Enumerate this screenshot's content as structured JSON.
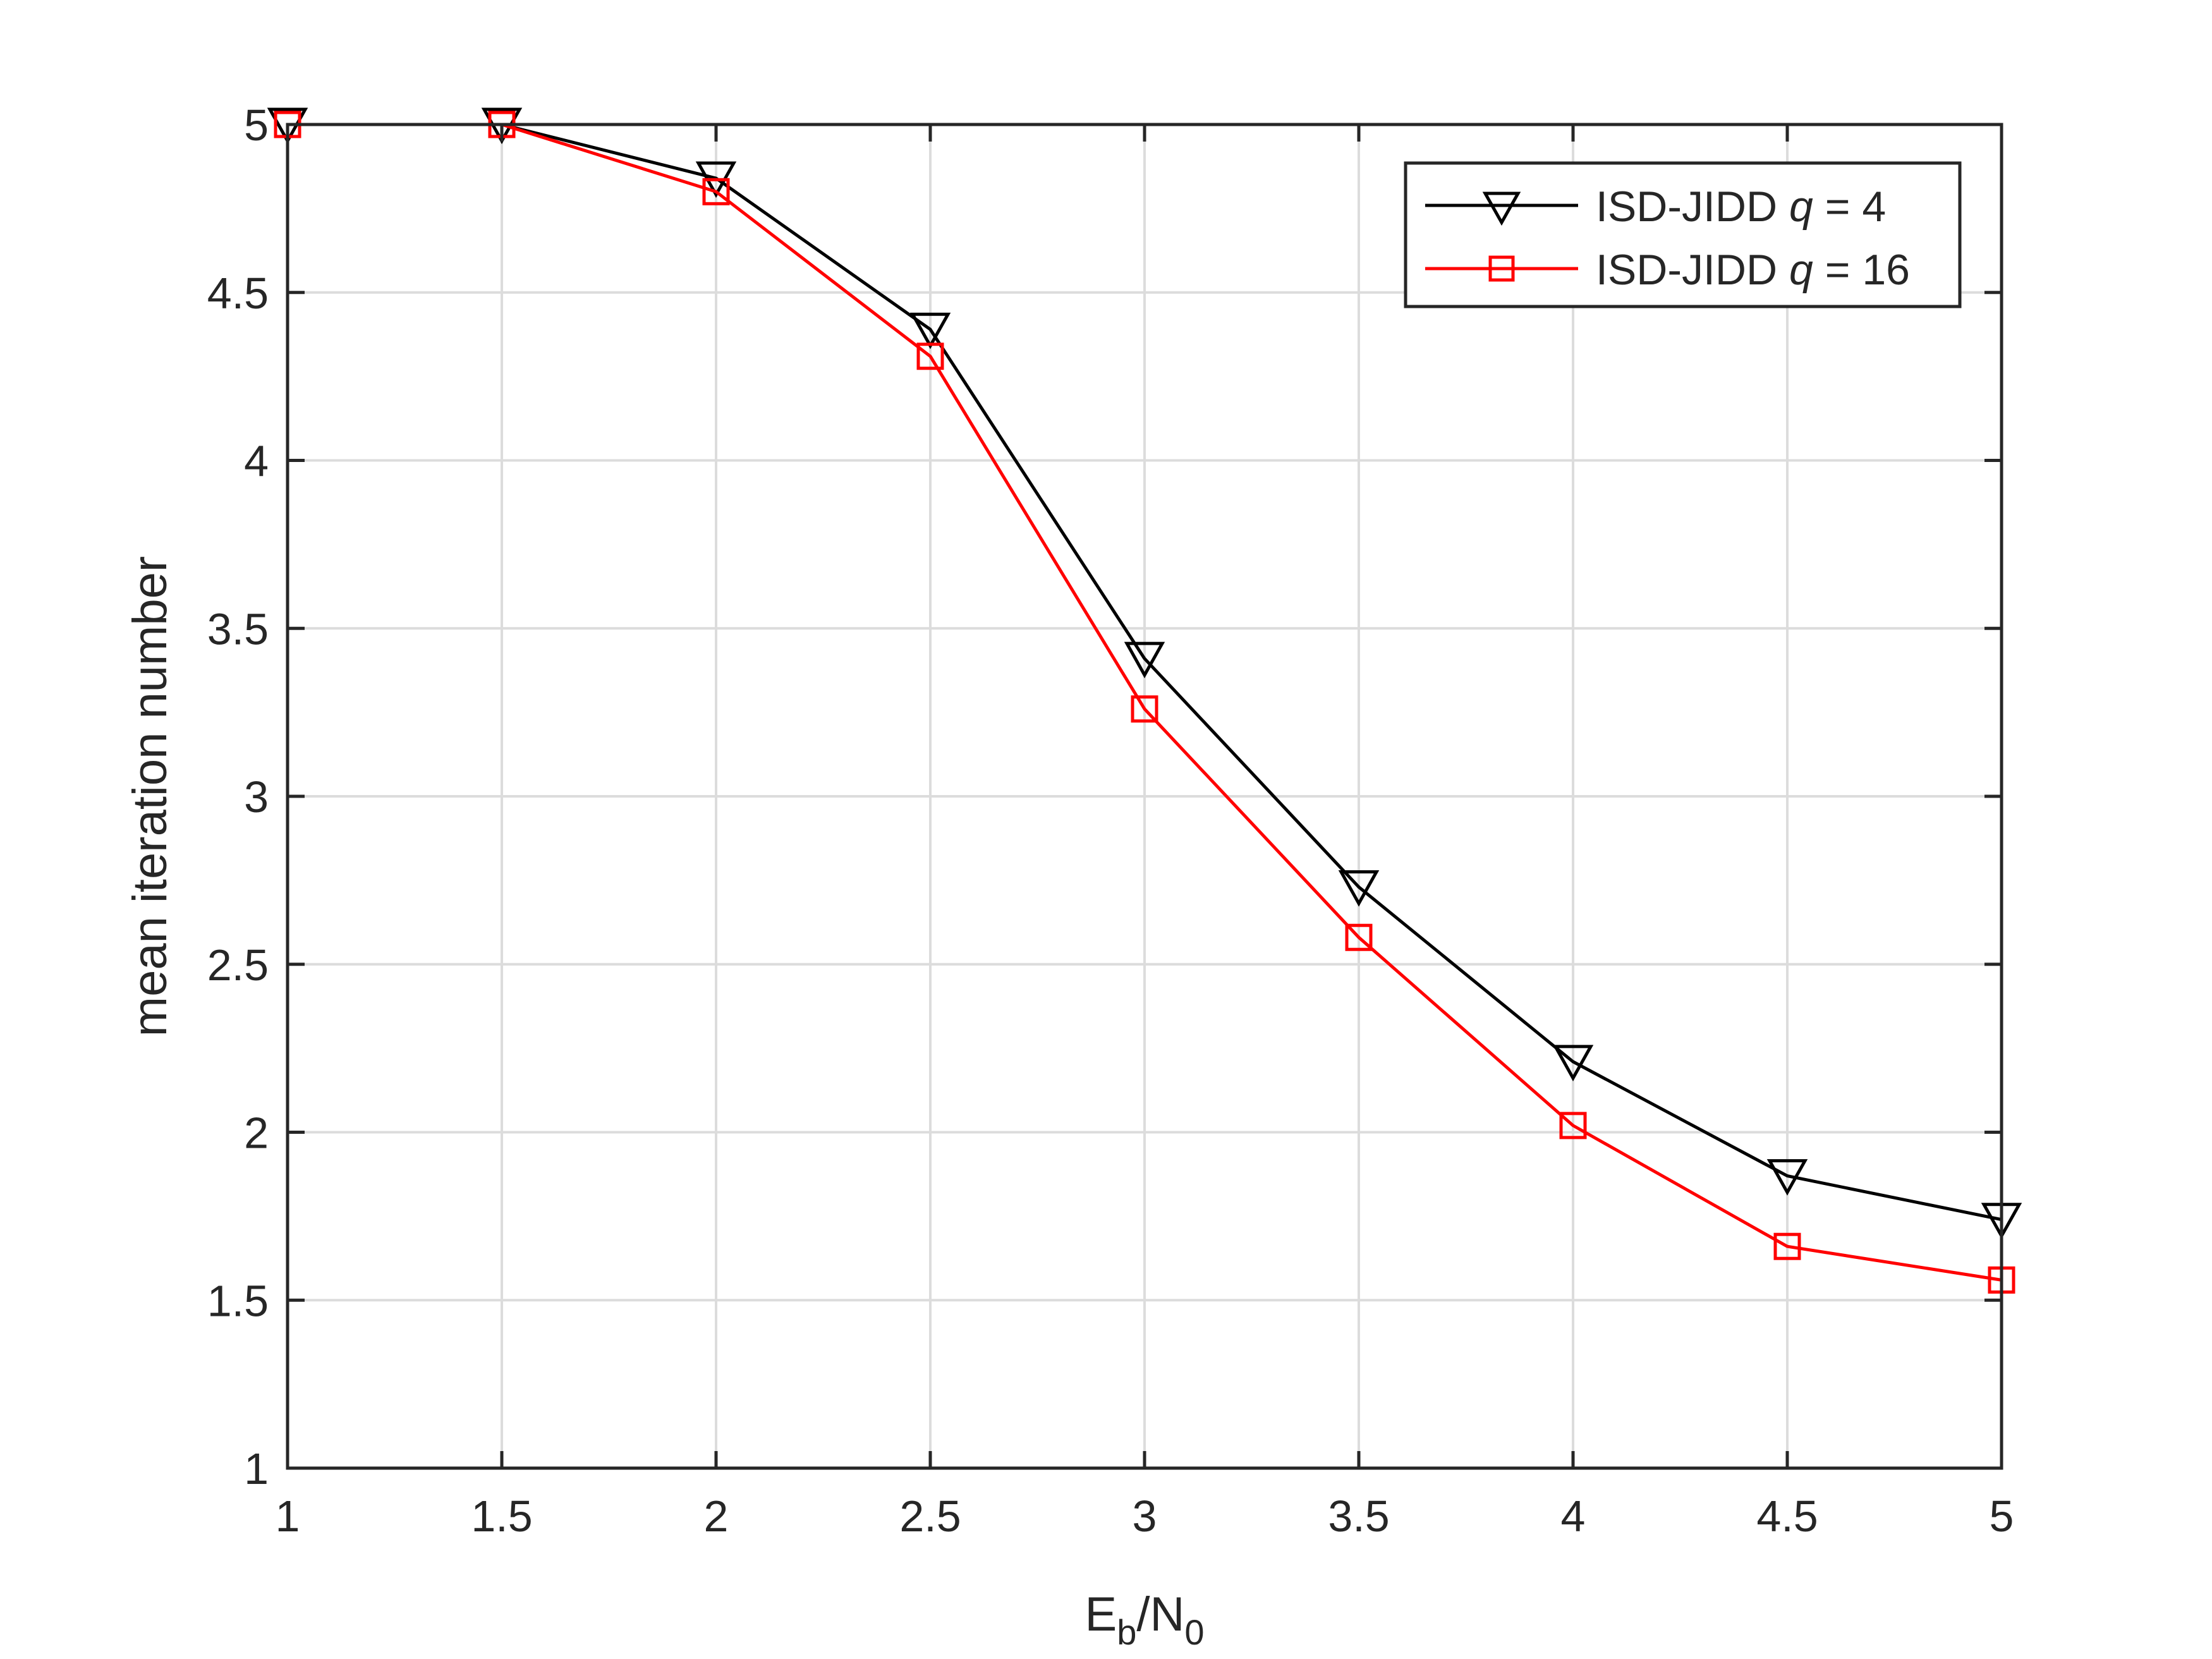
{
  "chart_data": {
    "type": "line",
    "xlabel": {
      "main": "E",
      "sub1": "b",
      "mid": "/N",
      "sub2": "0"
    },
    "ylabel": "mean iteration number",
    "xlim": [
      1,
      5
    ],
    "ylim": [
      1,
      5
    ],
    "xticks": [
      "1",
      "1.5",
      "2",
      "2.5",
      "3",
      "3.5",
      "4",
      "4.5",
      "5"
    ],
    "yticks": [
      "1",
      "1.5",
      "2",
      "2.5",
      "3",
      "3.5",
      "4",
      "4.5",
      "5"
    ],
    "grid": true,
    "legend_position": "top-right",
    "x": [
      1,
      1.5,
      2,
      2.5,
      3,
      3.5,
      4,
      4.5,
      5
    ],
    "series": [
      {
        "name_prefix": "ISD-JIDD ",
        "name_var": "q",
        "name_suffix": " = 4",
        "color": "#000000",
        "marker": "triangle-down-icon",
        "values": [
          5.0,
          5.0,
          4.84,
          4.39,
          3.41,
          2.73,
          2.21,
          1.87,
          1.74
        ]
      },
      {
        "name_prefix": "ISD-JIDD ",
        "name_var": "q",
        "name_suffix": " = 16",
        "color": "#ff0000",
        "marker": "square-icon",
        "values": [
          5.0,
          5.0,
          4.8,
          4.31,
          3.26,
          2.58,
          2.02,
          1.66,
          1.56
        ]
      }
    ]
  }
}
